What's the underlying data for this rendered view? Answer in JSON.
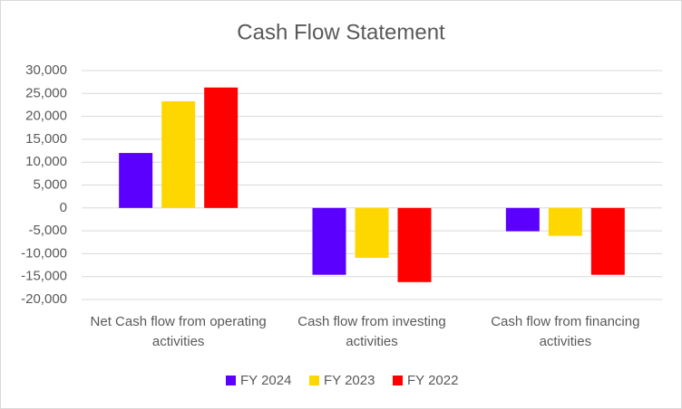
{
  "chart_data": {
    "type": "bar",
    "title": "Cash Flow Statement",
    "categories": [
      "Net Cash flow from operating activities",
      "Cash flow from investing activities",
      "Cash flow from financing activities"
    ],
    "series": [
      {
        "name": "FY 2024",
        "color": "#5b00ff",
        "values": [
          12000,
          -14600,
          -5100
        ]
      },
      {
        "name": "FY 2023",
        "color": "#ffd700",
        "values": [
          23300,
          -10900,
          -6100
        ]
      },
      {
        "name": "FY 2022",
        "color": "#ff0000",
        "values": [
          26300,
          -16200,
          -14600
        ]
      }
    ],
    "ylim": [
      -20000,
      30000
    ],
    "yticks": [
      {
        "value": -20000,
        "label": "-20,000"
      },
      {
        "value": -15000,
        "label": "-15,000"
      },
      {
        "value": -10000,
        "label": "-10,000"
      },
      {
        "value": -5000,
        "label": "-5,000"
      },
      0,
      {
        "value": 5000,
        "label": "5,000"
      },
      {
        "value": 10000,
        "label": "10,000"
      },
      {
        "value": 15000,
        "label": "15,000"
      },
      {
        "value": 20000,
        "label": "20,000"
      },
      {
        "value": 25000,
        "label": "25,000"
      },
      {
        "value": 30000,
        "label": "30,000"
      }
    ],
    "grid": true,
    "legend": "bottom"
  }
}
